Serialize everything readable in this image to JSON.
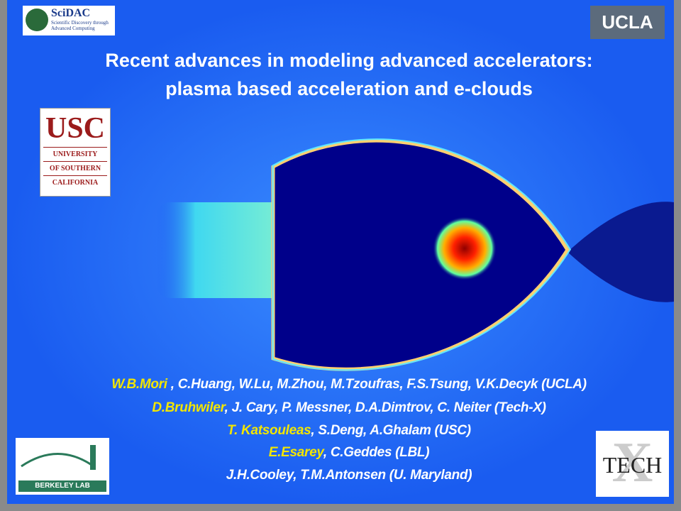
{
  "title": {
    "line1": "Recent advances in modeling advanced accelerators:",
    "line2": "plasma based acceleration and e-clouds"
  },
  "logos": {
    "scidac": {
      "name": "SciDAC",
      "tagline": "Scientific Discovery through Advanced Computing"
    },
    "ucla": "UCLA",
    "usc": {
      "name": "USC",
      "line1": "UNIVERSITY",
      "line2": "OF SOUTHERN",
      "line3": "CALIFORNIA"
    },
    "berkeley": "BERKELEY LAB",
    "techx": "TECH"
  },
  "authors": [
    {
      "lead": "W.B.Mori",
      "rest": " , C.Huang, W.Lu, M.Zhou, M.Tzoufras, F.S.Tsung, V.K.Decyk (UCLA)"
    },
    {
      "lead": "D.Bruhwiler",
      "rest": ", J. Cary, P. Messner, D.A.Dimtrov, C. Neiter (Tech-X)"
    },
    {
      "lead": "T. Katsouleas",
      "rest": ", S.Deng, A.Ghalam (USC)"
    },
    {
      "lead": "E.Esarey",
      "rest": ", C.Geddes (LBL)"
    },
    {
      "rest": "J.H.Cooley, T.M.Antonsen (U. Maryland)"
    }
  ]
}
